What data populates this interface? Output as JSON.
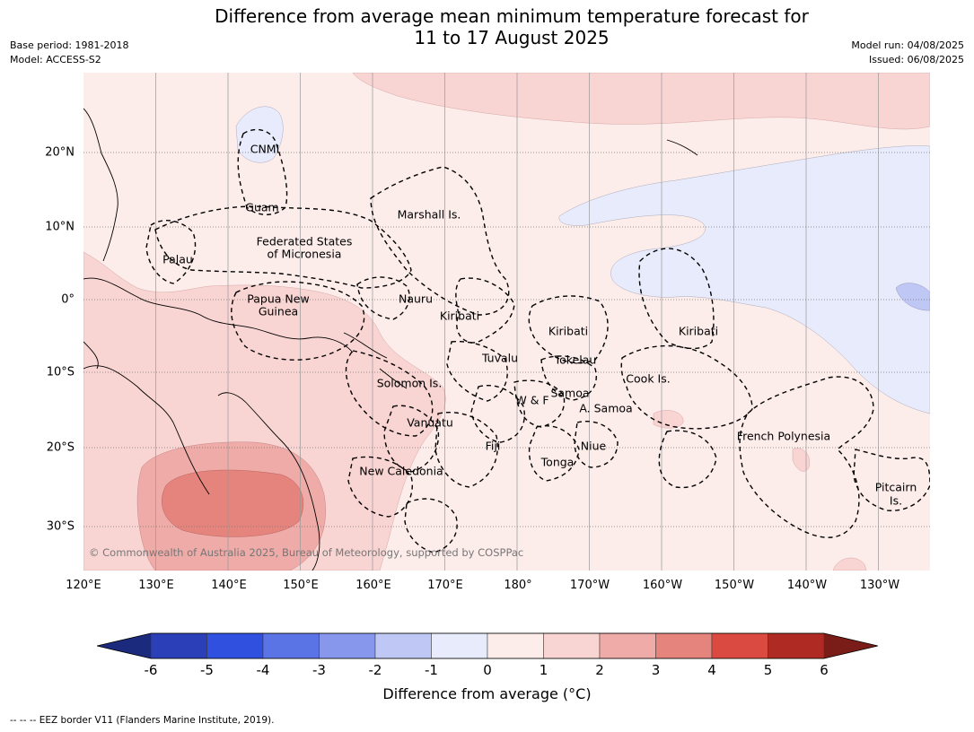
{
  "title_line1": "Difference from average mean minimum temperature forecast for",
  "title_line2": "11 to 17 August 2025",
  "base_period": "Base period: 1981-2018",
  "model": "Model: ACCESS-S2",
  "model_run": "Model run: 04/08/2025",
  "issued": "Issued: 06/08/2025",
  "copyright": "© Commonwealth of Australia 2025, Bureau of Meteorology, supported by COSPPac",
  "lon_ticks": [
    "120°E",
    "130°E",
    "140°E",
    "150°E",
    "160°E",
    "170°E",
    "180°",
    "170°W",
    "160°W",
    "150°W",
    "140°W",
    "130°W"
  ],
  "lat_ticks": [
    "20°N",
    "10°N",
    "0°",
    "10°S",
    "20°S",
    "30°S"
  ],
  "regions": {
    "cnmi": "CNMI",
    "guam": "Guam",
    "marshall": "Marshall Is.",
    "fsm1": "Federated States",
    "fsm2": "of Micronesia",
    "palau": "Palau",
    "png1": "Papua New",
    "png2": "Guinea",
    "nauru": "Nauru",
    "kiribati_w": "Kiribati",
    "kiribati_c": "Kiribati",
    "kiribati_e": "Kiribati",
    "tuvalu": "Tuvalu",
    "tokelau": "Tokelau",
    "solomon": "Solomon Is.",
    "samoa": "Samoa",
    "wf": "W & F",
    "asamoa": "A. Samoa",
    "cook": "Cook Is.",
    "vanuatu": "Vanuatu",
    "fiji": "Fiji",
    "niue": "Niue",
    "tonga": "Tonga",
    "newcal": "New Caledonia",
    "fpoly": "French Polynesia",
    "pitcairn1": "Pitcairn",
    "pitcairn2": "Is."
  },
  "colorbar": {
    "ticks": [
      "-6",
      "-5",
      "-4",
      "-3",
      "-2",
      "-1",
      "0",
      "1",
      "2",
      "3",
      "4",
      "5",
      "6"
    ],
    "colors": [
      "#2a3fb8",
      "#3050e0",
      "#5a74e6",
      "#8798ec",
      "#bfc7f5",
      "#e8ebfc",
      "#fcecea",
      "#f8d4d2",
      "#eeaba8",
      "#e5837d",
      "#db4a40",
      "#ae2a22"
    ],
    "under_color": "#1c2a7e",
    "over_color": "#7a1c18",
    "label": "Difference from average (°C)"
  },
  "footnote": "--  --  -- EEZ border V11 (Flanders Marine Institute, 2019)."
}
